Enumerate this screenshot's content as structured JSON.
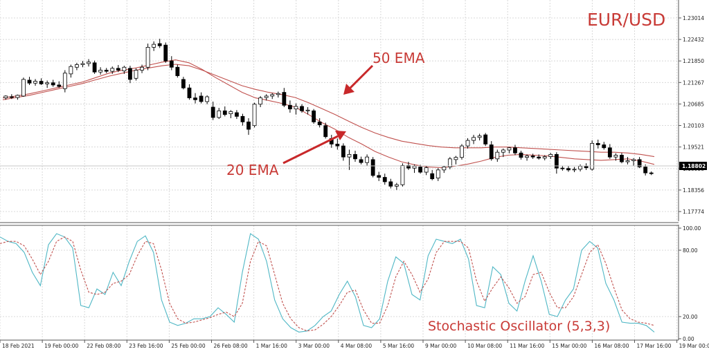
{
  "chart_data": [
    {
      "type": "candlestick",
      "title": "EUR/USD",
      "y_ticks": [
        "1.23014",
        "1.22432",
        "1.21850",
        "1.21267",
        "1.20685",
        "1.20103",
        "1.19521",
        "1.18938",
        "1.18356",
        "1.17774"
      ],
      "ylim": [
        1.1755,
        1.2335
      ],
      "current_price": "1.18802",
      "x_ticks": [
        "18 Feb 2021",
        "19 Feb 00:00",
        "22 Feb 08:00",
        "23 Feb 16:00",
        "25 Feb 00:00",
        "26 Feb 08:00",
        "1 Mar 16:00",
        "3 Mar 00:00",
        "4 Mar 08:00",
        "5 Mar 16:00",
        "9 Mar 00:00",
        "10 Mar 08:00",
        "11 Mar 16:00",
        "15 Mar 00:00",
        "16 Mar 08:00",
        "17 Mar 16:00",
        "19 Mar 00:00"
      ],
      "candles_ohlc": [
        [
          1.2085,
          1.2092,
          1.208,
          1.209
        ],
        [
          1.2088,
          1.2095,
          1.2082,
          1.2086
        ],
        [
          1.2086,
          1.2094,
          1.208,
          1.2092
        ],
        [
          1.209,
          1.214,
          1.2088,
          1.2135
        ],
        [
          1.2133,
          1.2142,
          1.212,
          1.2125
        ],
        [
          1.2125,
          1.2136,
          1.2118,
          1.213
        ],
        [
          1.213,
          1.2138,
          1.212,
          1.2123
        ],
        [
          1.2123,
          1.2132,
          1.2112,
          1.2126
        ],
        [
          1.2126,
          1.2134,
          1.2115,
          1.212
        ],
        [
          1.212,
          1.213,
          1.2112,
          1.2116
        ],
        [
          1.211,
          1.216,
          1.21,
          1.2152
        ],
        [
          1.215,
          1.2175,
          1.214,
          1.217
        ],
        [
          1.2168,
          1.218,
          1.216,
          1.2175
        ],
        [
          1.2175,
          1.2185,
          1.2168,
          1.2178
        ],
        [
          1.2178,
          1.219,
          1.217,
          1.2182
        ],
        [
          1.218,
          1.2186,
          1.215,
          1.2155
        ],
        [
          1.2155,
          1.2168,
          1.2148,
          1.216
        ],
        [
          1.216,
          1.2166,
          1.2152,
          1.2157
        ],
        [
          1.2157,
          1.217,
          1.215,
          1.2165
        ],
        [
          1.2165,
          1.2174,
          1.2155,
          1.216
        ],
        [
          1.2158,
          1.2172,
          1.215,
          1.2168
        ],
        [
          1.2165,
          1.2172,
          1.2125,
          1.2135
        ],
        [
          1.2138,
          1.2165,
          1.2132,
          1.216
        ],
        [
          1.216,
          1.2175,
          1.2152,
          1.2168
        ],
        [
          1.2168,
          1.2232,
          1.216,
          1.2222
        ],
        [
          1.2222,
          1.2238,
          1.2212,
          1.223
        ],
        [
          1.2232,
          1.2245,
          1.222,
          1.2226
        ],
        [
          1.2228,
          1.2235,
          1.218,
          1.2185
        ],
        [
          1.2185,
          1.2198,
          1.216,
          1.2168
        ],
        [
          1.2168,
          1.2175,
          1.214,
          1.2145
        ],
        [
          1.2135,
          1.2142,
          1.2108,
          1.2112
        ],
        [
          1.2112,
          1.2122,
          1.208,
          1.2085
        ],
        [
          1.2085,
          1.2098,
          1.207,
          1.208
        ],
        [
          1.209,
          1.21,
          1.207,
          1.2075
        ],
        [
          1.2075,
          1.2092,
          1.2068,
          1.2088
        ],
        [
          1.206,
          1.2075,
          1.2025,
          1.2032
        ],
        [
          1.2032,
          1.2058,
          1.2028,
          1.205
        ],
        [
          1.205,
          1.2062,
          1.2035,
          1.204
        ],
        [
          1.2042,
          1.2052,
          1.203,
          1.2048
        ],
        [
          1.2045,
          1.2052,
          1.2028,
          1.2035
        ],
        [
          1.2035,
          1.2042,
          1.201,
          1.202
        ],
        [
          1.202,
          1.203,
          1.1985,
          1.2
        ],
        [
          1.201,
          1.2072,
          1.2005,
          1.2068
        ],
        [
          1.2068,
          1.209,
          1.206,
          1.2085
        ],
        [
          1.2086,
          1.2095,
          1.2078,
          1.209
        ],
        [
          1.209,
          1.2098,
          1.2082,
          1.2094
        ],
        [
          1.2094,
          1.2102,
          1.2086,
          1.2097
        ],
        [
          1.21,
          1.2112,
          1.206,
          1.2065
        ],
        [
          1.2065,
          1.2078,
          1.2045,
          1.2055
        ],
        [
          1.2055,
          1.207,
          1.204,
          1.2062
        ],
        [
          1.2062,
          1.2068,
          1.2045,
          1.205
        ],
        [
          1.205,
          1.206,
          1.204,
          1.2052
        ],
        [
          1.205,
          1.2055,
          1.2015,
          1.202
        ],
        [
          1.202,
          1.203,
          1.2005,
          1.2012
        ],
        [
          1.201,
          1.2018,
          1.1975,
          1.198
        ],
        [
          1.1975,
          1.1985,
          1.195,
          1.196
        ],
        [
          1.196,
          1.1975,
          1.1945,
          1.1955
        ],
        [
          1.1955,
          1.1962,
          1.1915,
          1.1925
        ],
        [
          1.1925,
          1.1945,
          1.189,
          1.1932
        ],
        [
          1.1932,
          1.1942,
          1.1912,
          1.192
        ],
        [
          1.1918,
          1.1926,
          1.1905,
          1.191
        ],
        [
          1.191,
          1.1932,
          1.1902,
          1.1925
        ],
        [
          1.1918,
          1.1925,
          1.187,
          1.1875
        ],
        [
          1.1875,
          1.1885,
          1.186,
          1.187
        ],
        [
          1.187,
          1.188,
          1.185,
          1.1858
        ],
        [
          1.1858,
          1.1866,
          1.184,
          1.1846
        ],
        [
          1.1846,
          1.1855,
          1.1836,
          1.185
        ],
        [
          1.185,
          1.1908,
          1.1845,
          1.1902
        ],
        [
          1.1902,
          1.1912,
          1.189,
          1.1895
        ],
        [
          1.1895,
          1.1905,
          1.1882,
          1.19
        ],
        [
          1.1898,
          1.1904,
          1.188,
          1.1884
        ],
        [
          1.1884,
          1.19,
          1.1876,
          1.1896
        ],
        [
          1.188,
          1.189,
          1.1862,
          1.1866
        ],
        [
          1.1868,
          1.1895,
          1.186,
          1.189
        ],
        [
          1.189,
          1.1902,
          1.1882,
          1.1898
        ],
        [
          1.1898,
          1.1925,
          1.1892,
          1.192
        ],
        [
          1.1918,
          1.1928,
          1.1905,
          1.1924
        ],
        [
          1.1924,
          1.196,
          1.1918,
          1.1955
        ],
        [
          1.1955,
          1.1976,
          1.1948,
          1.197
        ],
        [
          1.197,
          1.1985,
          1.196,
          1.1978
        ],
        [
          1.1978,
          1.1988,
          1.197,
          1.1982
        ],
        [
          1.1985,
          1.199,
          1.1955,
          1.196
        ],
        [
          1.1958,
          1.1968,
          1.1915,
          1.192
        ],
        [
          1.192,
          1.1945,
          1.1912,
          1.1938
        ],
        [
          1.1938,
          1.1948,
          1.1925,
          1.1944
        ],
        [
          1.1944,
          1.1952,
          1.1935,
          1.195
        ],
        [
          1.195,
          1.1958,
          1.193,
          1.1936
        ],
        [
          1.1936,
          1.1942,
          1.1918,
          1.1924
        ],
        [
          1.1924,
          1.1932,
          1.1915,
          1.1928
        ],
        [
          1.1928,
          1.1934,
          1.192,
          1.1925
        ],
        [
          1.1925,
          1.1932,
          1.1918,
          1.1922
        ],
        [
          1.1922,
          1.193,
          1.1916,
          1.1926
        ],
        [
          1.1926,
          1.1936,
          1.192,
          1.1932
        ],
        [
          1.1932,
          1.1938,
          1.188,
          1.1895
        ],
        [
          1.1895,
          1.1902,
          1.1888,
          1.1894
        ],
        [
          1.1894,
          1.19,
          1.1885,
          1.189
        ],
        [
          1.189,
          1.1898,
          1.1884,
          1.1892
        ],
        [
          1.1892,
          1.1905,
          1.1886,
          1.19
        ],
        [
          1.19,
          1.1908,
          1.189,
          1.1896
        ],
        [
          1.1892,
          1.197,
          1.1888,
          1.1962
        ],
        [
          1.1962,
          1.1972,
          1.1948,
          1.1958
        ],
        [
          1.1958,
          1.1966,
          1.1945,
          1.195
        ],
        [
          1.195,
          1.196,
          1.192,
          1.1925
        ],
        [
          1.1925,
          1.1935,
          1.1915,
          1.193
        ],
        [
          1.193,
          1.1936,
          1.1908,
          1.1912
        ],
        [
          1.1912,
          1.1925,
          1.1905,
          1.1915
        ],
        [
          1.1915,
          1.1922,
          1.19,
          1.1918
        ],
        [
          1.1918,
          1.1925,
          1.1895,
          1.1898
        ],
        [
          1.1898,
          1.1905,
          1.1875,
          1.1882
        ],
        [
          1.1882,
          1.1886,
          1.1876,
          1.188
        ]
      ],
      "ema20": [
        1.2085,
        1.209,
        1.2096,
        1.2104,
        1.2112,
        1.212,
        1.2128,
        1.214,
        1.2152,
        1.216,
        1.2166,
        1.2174,
        1.2182,
        1.2188,
        1.218,
        1.2162,
        1.214,
        1.212,
        1.21,
        1.2085,
        1.2078,
        1.207,
        1.206,
        1.204,
        1.2018,
        1.2,
        1.1978,
        1.196,
        1.194,
        1.1925,
        1.1912,
        1.1904,
        1.1898,
        1.1896,
        1.19,
        1.1906,
        1.1914,
        1.1924,
        1.193,
        1.1932,
        1.193,
        1.1928,
        1.1924,
        1.192,
        1.1918,
        1.1916,
        1.1918,
        1.192,
        1.1914,
        1.1905
      ],
      "ema50": [
        1.208,
        1.2086,
        1.2092,
        1.21,
        1.2108,
        1.2116,
        1.2124,
        1.2134,
        1.2144,
        1.2152,
        1.216,
        1.2166,
        1.2172,
        1.2176,
        1.2172,
        1.216,
        1.2146,
        1.2132,
        1.2118,
        1.2108,
        1.21,
        1.2094,
        1.2086,
        1.2072,
        1.2056,
        1.204,
        1.2022,
        1.2005,
        1.199,
        1.1978,
        1.1968,
        1.1962,
        1.1956,
        1.1952,
        1.195,
        1.195,
        1.195,
        1.1952,
        1.1952,
        1.195,
        1.1948,
        1.1946,
        1.1944,
        1.1942,
        1.194,
        1.1938,
        1.1938,
        1.1936,
        1.1932,
        1.1926
      ],
      "annotations": [
        "50 EMA",
        "20 EMA"
      ]
    },
    {
      "type": "line",
      "label": "Stochastic Oscillator (5,3,3)",
      "y_ticks": [
        "100.00",
        "80.00",
        "20.00",
        "0.00"
      ],
      "ylim": [
        0,
        100
      ],
      "series": [
        {
          "color": "#4fb7c5",
          "style": "solid",
          "values": [
            92,
            88,
            86,
            78,
            60,
            48,
            85,
            95,
            92,
            82,
            30,
            28,
            45,
            40,
            60,
            48,
            70,
            88,
            93,
            78,
            35,
            15,
            12,
            14,
            18,
            18,
            20,
            28,
            22,
            15,
            60,
            95,
            90,
            70,
            35,
            18,
            10,
            6,
            7,
            12,
            20,
            25,
            40,
            52,
            38,
            12,
            10,
            18,
            52,
            74,
            68,
            40,
            35,
            75,
            90,
            88,
            86,
            90,
            72,
            30,
            28,
            65,
            58,
            32,
            25,
            52,
            75,
            52,
            22,
            20,
            35,
            45,
            80,
            88,
            82,
            50,
            35,
            15,
            14,
            14,
            12,
            6
          ]
        },
        {
          "color": "#c0504d",
          "style": "dashed",
          "values": [
            86,
            88,
            88,
            84,
            72,
            58,
            70,
            88,
            92,
            88,
            62,
            42,
            40,
            42,
            50,
            52,
            58,
            75,
            88,
            86,
            62,
            32,
            18,
            14,
            15,
            17,
            19,
            22,
            24,
            20,
            32,
            70,
            88,
            84,
            58,
            32,
            18,
            10,
            7,
            8,
            13,
            20,
            30,
            42,
            44,
            26,
            14,
            14,
            30,
            56,
            70,
            58,
            42,
            54,
            78,
            88,
            88,
            88,
            82,
            52,
            34,
            46,
            56,
            46,
            32,
            38,
            58,
            60,
            42,
            28,
            28,
            38,
            58,
            78,
            85,
            68,
            46,
            26,
            18,
            15,
            14,
            12
          ]
        }
      ]
    }
  ]
}
